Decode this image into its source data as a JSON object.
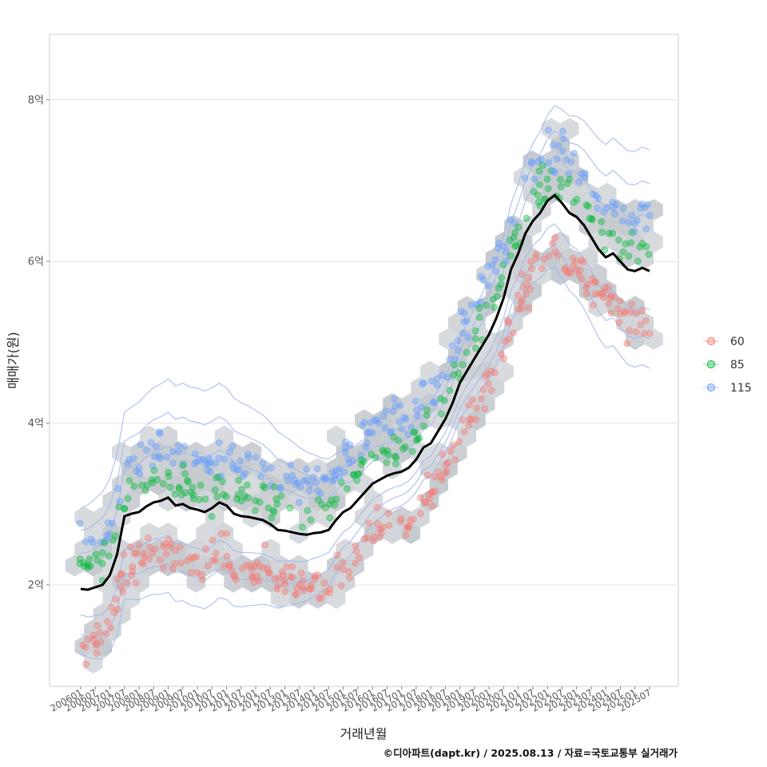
{
  "chart_data": {
    "type": "scatter",
    "xlabel": "거래년월",
    "ylabel": "매매가(원)",
    "caption": "©디아파트(dapt.kr) / 2025.08.13 / 자료=국토교통부 실거래가",
    "x_range": [
      "2006-01",
      "2025-07"
    ],
    "ylim_eok": [
      0.8,
      8.7
    ],
    "y_ticks": [
      {
        "value": 2,
        "label": "2억"
      },
      {
        "value": 4,
        "label": "4억"
      },
      {
        "value": 6,
        "label": "6억"
      },
      {
        "value": 8,
        "label": "8억"
      }
    ],
    "x_ticks": [
      "200601",
      "200607",
      "200701",
      "200707",
      "200801",
      "200807",
      "200901",
      "200907",
      "201001",
      "201007",
      "201101",
      "201107",
      "201201",
      "201207",
      "201301",
      "201307",
      "201401",
      "201407",
      "201501",
      "201507",
      "201601",
      "201607",
      "201701",
      "201707",
      "201801",
      "201807",
      "201901",
      "201907",
      "202001",
      "202007",
      "202101",
      "202107",
      "202201",
      "202207",
      "202301",
      "202307",
      "202401",
      "202407",
      "202501",
      "202507"
    ],
    "grid": true,
    "legend_position": "right",
    "legend": [
      {
        "label": "60",
        "color": "#F8766D"
      },
      {
        "label": "85",
        "color": "#00BA38"
      },
      {
        "label": "115",
        "color": "#619CFF"
      }
    ],
    "hex_color": "#c3c8cd",
    "contour_color": "#9fb4ef",
    "trend_line": {
      "color": "#000000",
      "points": [
        [
          "2006-01",
          1.95
        ],
        [
          "2006-04",
          1.94
        ],
        [
          "2006-07",
          1.97
        ],
        [
          "2006-10",
          2.0
        ],
        [
          "2007-01",
          2.12
        ],
        [
          "2007-04",
          2.38
        ],
        [
          "2007-07",
          2.85
        ],
        [
          "2007-10",
          2.88
        ],
        [
          "2008-01",
          2.9
        ],
        [
          "2008-04",
          2.97
        ],
        [
          "2008-07",
          3.02
        ],
        [
          "2008-10",
          3.04
        ],
        [
          "2009-01",
          3.08
        ],
        [
          "2009-04",
          2.98
        ],
        [
          "2009-07",
          3.0
        ],
        [
          "2009-10",
          2.95
        ],
        [
          "2010-01",
          2.93
        ],
        [
          "2010-04",
          2.9
        ],
        [
          "2010-07",
          2.95
        ],
        [
          "2010-10",
          3.02
        ],
        [
          "2011-01",
          2.98
        ],
        [
          "2011-04",
          2.88
        ],
        [
          "2011-07",
          2.85
        ],
        [
          "2011-10",
          2.84
        ],
        [
          "2012-01",
          2.82
        ],
        [
          "2012-04",
          2.8
        ],
        [
          "2012-07",
          2.75
        ],
        [
          "2012-10",
          2.68
        ],
        [
          "2013-01",
          2.67
        ],
        [
          "2013-04",
          2.65
        ],
        [
          "2013-07",
          2.63
        ],
        [
          "2013-10",
          2.62
        ],
        [
          "2014-01",
          2.64
        ],
        [
          "2014-04",
          2.65
        ],
        [
          "2014-07",
          2.68
        ],
        [
          "2014-10",
          2.8
        ],
        [
          "2015-01",
          2.9
        ],
        [
          "2015-04",
          2.95
        ],
        [
          "2015-07",
          3.05
        ],
        [
          "2015-10",
          3.15
        ],
        [
          "2016-01",
          3.25
        ],
        [
          "2016-04",
          3.3
        ],
        [
          "2016-07",
          3.35
        ],
        [
          "2016-10",
          3.38
        ],
        [
          "2017-01",
          3.4
        ],
        [
          "2017-04",
          3.45
        ],
        [
          "2017-07",
          3.55
        ],
        [
          "2017-10",
          3.7
        ],
        [
          "2018-01",
          3.75
        ],
        [
          "2018-04",
          3.9
        ],
        [
          "2018-07",
          4.05
        ],
        [
          "2018-10",
          4.25
        ],
        [
          "2019-01",
          4.5
        ],
        [
          "2019-04",
          4.65
        ],
        [
          "2019-07",
          4.8
        ],
        [
          "2019-10",
          4.95
        ],
        [
          "2020-01",
          5.1
        ],
        [
          "2020-04",
          5.3
        ],
        [
          "2020-07",
          5.55
        ],
        [
          "2020-10",
          5.9
        ],
        [
          "2021-01",
          6.1
        ],
        [
          "2021-04",
          6.35
        ],
        [
          "2021-07",
          6.5
        ],
        [
          "2021-10",
          6.6
        ],
        [
          "2022-01",
          6.75
        ],
        [
          "2022-04",
          6.82
        ],
        [
          "2022-07",
          6.72
        ],
        [
          "2022-10",
          6.6
        ],
        [
          "2023-01",
          6.55
        ],
        [
          "2023-04",
          6.45
        ],
        [
          "2023-07",
          6.3
        ],
        [
          "2023-10",
          6.15
        ],
        [
          "2024-01",
          6.05
        ],
        [
          "2024-04",
          6.1
        ],
        [
          "2024-07",
          6.0
        ],
        [
          "2024-10",
          5.9
        ],
        [
          "2025-01",
          5.88
        ],
        [
          "2025-04",
          5.92
        ],
        [
          "2025-07",
          5.88
        ]
      ]
    }
  }
}
